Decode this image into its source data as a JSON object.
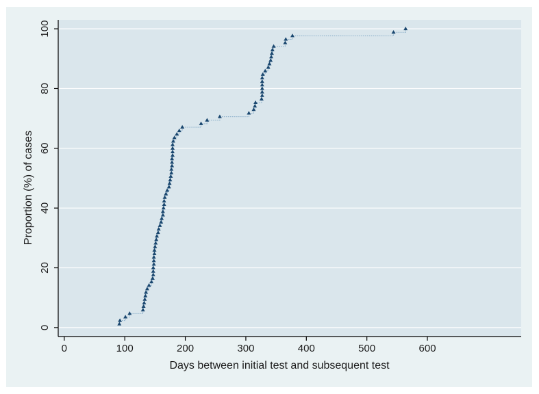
{
  "chart_data": {
    "type": "scatter",
    "title": "",
    "xlabel": "Days between initial test and subsequent test",
    "ylabel": "Proportion (%) of cases",
    "xlim": [
      -10,
      755
    ],
    "ylim": [
      -3,
      103
    ],
    "xticks": [
      0,
      100,
      200,
      300,
      400,
      500,
      600
    ],
    "yticks": [
      0,
      20,
      40,
      60,
      80,
      100
    ],
    "grid": "horizontal",
    "legend": "none",
    "style": {
      "plot_background": "#dae6ec",
      "frame_background": "#eaf2f3",
      "gridline_color": "#ffffff",
      "marker_color": "#1a476f",
      "step_line_color": "#7fa6c4",
      "axis_color": "#000000"
    },
    "series": [
      {
        "x": [
          91,
          92,
          101,
          108,
          130,
          131,
          132,
          133,
          134,
          135,
          137,
          140,
          144,
          146,
          147,
          147,
          147,
          148,
          148,
          148,
          149,
          149,
          150,
          151,
          152,
          153,
          155,
          156,
          158,
          160,
          161,
          163,
          163,
          164,
          165,
          165,
          166,
          168,
          170,
          173,
          174,
          175,
          176,
          177,
          177,
          178,
          178,
          178,
          179,
          179,
          179,
          179,
          180,
          182,
          186,
          190,
          195,
          226,
          236,
          257,
          305,
          313,
          315,
          316,
          326,
          327,
          327,
          327,
          327,
          327,
          327,
          328,
          332,
          337,
          339,
          341,
          342,
          343,
          344,
          346,
          365,
          366,
          377,
          544,
          564
        ],
        "y": [
          1.18,
          2.35,
          3.53,
          4.71,
          5.88,
          7.06,
          8.24,
          9.41,
          10.59,
          11.76,
          12.94,
          14.12,
          15.29,
          16.47,
          17.65,
          18.82,
          20.0,
          21.18,
          22.35,
          23.53,
          24.71,
          25.88,
          27.06,
          28.24,
          29.41,
          30.59,
          31.76,
          32.94,
          34.12,
          35.29,
          36.47,
          37.65,
          38.82,
          40.0,
          41.18,
          42.35,
          43.53,
          44.71,
          45.88,
          47.06,
          48.24,
          49.41,
          50.59,
          51.76,
          52.94,
          54.12,
          55.29,
          56.47,
          57.65,
          58.82,
          60.0,
          61.18,
          62.35,
          63.53,
          64.71,
          65.88,
          67.06,
          68.24,
          69.41,
          70.59,
          71.76,
          72.94,
          74.12,
          75.29,
          76.47,
          77.65,
          78.82,
          80.0,
          81.18,
          82.35,
          83.53,
          84.71,
          85.88,
          87.06,
          88.24,
          89.41,
          90.59,
          91.76,
          92.94,
          94.12,
          95.29,
          96.47,
          97.65,
          98.82,
          100.0
        ]
      }
    ]
  }
}
